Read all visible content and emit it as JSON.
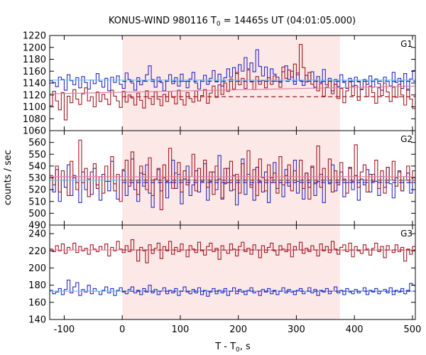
{
  "chart_data": {
    "type": "line",
    "title": {
      "prefix": "KONUS-WIND 980116 T",
      "prefix_sub": "0",
      "suffix": " = 14465s UT (04:01:05.000)"
    },
    "xlabel": {
      "prefix": "T - T",
      "sub": "0",
      "suffix": ", s"
    },
    "ylabel": "counts / sec",
    "xlim": [
      -125,
      505
    ],
    "xticks": [
      -100,
      0,
      100,
      200,
      300,
      400,
      500
    ],
    "xtick_labels": [
      "-100",
      "0",
      "100",
      "200",
      "300",
      "400",
      "500"
    ],
    "shaded_interval": {
      "x": [
        0,
        375
      ],
      "color": "#fde8e8"
    },
    "colors": {
      "red": "#a01820",
      "blue": "#2828c0",
      "fit_red": "#e080a8",
      "fit_blue": "#60c8e8"
    },
    "panels": [
      {
        "label": "G1",
        "ylim": [
          1060,
          1220
        ],
        "yticks": [
          1060,
          1080,
          1100,
          1120,
          1140,
          1160,
          1180,
          1200,
          1220
        ],
        "ytick_labels": [
          "1060",
          "1080",
          "1100",
          "1120",
          "1140",
          "1160",
          "1180",
          "1200",
          "1220"
        ],
        "bin_width": 5,
        "series": [
          {
            "color": "blue",
            "values": [
              1144,
              1141,
              1134,
              1150,
              1146,
              1128,
              1154,
              1144,
              1137,
              1149,
              1132,
              1151,
              1141,
              1130,
              1145,
              1139,
              1156,
              1143,
              1133,
              1148,
              1127,
              1150,
              1141,
              1152,
              1138,
              1131,
              1157,
              1146,
              1140,
              1128,
              1149,
              1137,
              1144,
              1154,
              1169,
              1146,
              1133,
              1150,
              1141,
              1127,
              1145,
              1154,
              1139,
              1149,
              1135,
              1155,
              1143,
              1132,
              1147,
              1158,
              1140,
              1130,
              1145,
              1153,
              1138,
              1148,
              1161,
              1142,
              1155,
              1135,
              1149,
              1164,
              1150,
              1166,
              1156,
              1171,
              1160,
              1183,
              1164,
              1174,
              1159,
              1196,
              1168,
              1152,
              1167,
              1145,
              1164,
              1155,
              1150,
              1141,
              1159,
              1169,
              1146,
              1160,
              1138,
              1157,
              1144,
              1136,
              1153,
              1145,
              1159,
              1133,
              1151,
              1141,
              1163,
              1137,
              1148,
              1127,
              1146,
              1134,
              1154,
              1141,
              1131,
              1148,
              1135,
              1150,
              1142,
              1129,
              1146,
              1138,
              1152,
              1133,
              1147,
              1139,
              1128,
              1150,
              1143,
              1135,
              1158,
              1141,
              1148,
              1131,
              1156,
              1128,
              1147,
              1161
            ]
          },
          {
            "color": "red",
            "values": [
              1102,
              1126,
              1110,
              1095,
              1124,
              1078,
              1118,
              1107,
              1129,
              1113,
              1104,
              1122,
              1132,
              1110,
              1117,
              1100,
              1125,
              1109,
              1121,
              1113,
              1104,
              1128,
              1118,
              1110,
              1099,
              1126,
              1108,
              1120,
              1115,
              1103,
              1123,
              1111,
              1098,
              1127,
              1114,
              1104,
              1125,
              1113,
              1102,
              1121,
              1109,
              1126,
              1116,
              1105,
              1128,
              1112,
              1103,
              1124,
              1114,
              1108,
              1127,
              1110,
              1119,
              1129,
              1106,
              1123,
              1135,
              1116,
              1137,
              1121,
              1140,
              1126,
              1147,
              1130,
              1158,
              1137,
              1148,
              1131,
              1162,
              1142,
              1129,
              1151,
              1138,
              1144,
              1132,
              1149,
              1138,
              1152,
              1143,
              1133,
              1167,
              1148,
              1162,
              1150,
              1172,
              1154,
              1205,
              1166,
              1142,
              1158,
              1138,
              1145,
              1127,
              1139,
              1118,
              1133,
              1145,
              1122,
              1138,
              1114,
              1131,
              1107,
              1127,
              1142,
              1119,
              1136,
              1111,
              1130,
              1143,
              1117,
              1135,
              1124,
              1106,
              1132,
              1119,
              1140,
              1125,
              1109,
              1133,
              1116,
              1138,
              1120,
              1103,
              1130,
              1113,
              1097
            ]
          }
        ],
        "fits": [
          {
            "color": "fit_blue",
            "style": "solid",
            "y": 1145
          },
          {
            "color": "fit_red",
            "style": "solid",
            "points": [
              [
                -125,
                1122
              ],
              [
                505,
                1135
              ]
            ]
          },
          {
            "color": "red",
            "style": "dashed",
            "y": 1117
          },
          {
            "color": "blue",
            "style": "dashed",
            "y": 1143
          }
        ]
      },
      {
        "label": "G2",
        "ylim": [
          490,
          570
        ],
        "yticks": [
          490,
          500,
          510,
          520,
          530,
          540,
          550,
          560
        ],
        "ytick_labels": [
          "490",
          "500",
          "510",
          "520",
          "530",
          "540",
          "550",
          "560"
        ],
        "bin_width": 5,
        "series": [
          {
            "color": "blue",
            "values": [
              530,
              518,
              537,
              510,
              528,
              522,
              541,
              515,
              532,
              526,
              509,
              535,
              520,
              529,
              516,
              538,
              524,
              511,
              533,
              527,
              519,
              544,
              525,
              512,
              531,
              536,
              515,
              528,
              546,
              520,
              510,
              534,
              523,
              541,
              517,
              505,
              528,
              537,
              519,
              530,
              513,
              526,
              545,
              521,
              533,
              508,
              529,
              540,
              515,
              524,
              536,
              518,
              531,
              542,
              511,
              527,
              535,
              520,
              549,
              512,
              525,
              538,
              519,
              532,
              507,
              528,
              546,
              516,
              533,
              524,
              511,
              539,
              527,
              518,
              535,
              509,
              530,
              543,
              521,
              526,
              514,
              537,
              523,
              531,
              545,
              517,
              528,
              512,
              534,
              522,
              539,
              515,
              527,
              533,
              509,
              531,
              525,
              541,
              519,
              528,
              535,
              514,
              526,
              538,
              520,
              532,
              511,
              529,
              524,
              537,
              518,
              533,
              527,
              515,
              531,
              522,
              539,
              525,
              513,
              530,
              536,
              519,
              528,
              534,
              517,
              530
            ]
          },
          {
            "color": "red",
            "values": [
              532,
              524,
              540,
              518,
              536,
              528,
              515,
              544,
              530,
              520,
              562,
              526,
              538,
              514,
              535,
              542,
              521,
              531,
              517,
              540,
              527,
              548,
              519,
              533,
              510,
              537,
              545,
              523,
              552,
              528,
              516,
              540,
              533,
              520,
              547,
              515,
              529,
              538,
              503,
              541,
              527,
              555,
              521,
              534,
              543,
              518,
              536,
              524,
              531,
              550,
              519,
              538,
              527,
              545,
              522,
              535,
              516,
              540,
              529,
              513,
              538,
              526,
              544,
              520,
              533,
              517,
              542,
              528,
              553,
              522,
              537,
              515,
              546,
              530,
              519,
              541,
              526,
              534,
              517,
              548,
              524,
              532,
              541,
              519,
              536,
              527,
              545,
              521,
              534,
              512,
              540,
              525,
              557,
              522,
              538,
              528,
              546,
              518,
              536,
              524,
              543,
              529,
              517,
              539,
              527,
              558,
              522,
              535,
              541,
              518,
              533,
              527,
              545,
              521,
              536,
              517,
              539,
              528,
              544,
              523,
              535,
              519,
              531,
              540,
              526,
              536
            ]
          }
        ],
        "fits": [
          {
            "color": "fit_red",
            "style": "solid",
            "y": 531
          },
          {
            "color": "fit_blue",
            "style": "solid",
            "y": 528
          },
          {
            "color": "blue",
            "style": "dashed",
            "y": 526
          },
          {
            "color": "red",
            "style": "dashed",
            "y": 528
          }
        ]
      },
      {
        "label": "G3",
        "ylim": [
          140,
          250
        ],
        "yticks": [
          140,
          160,
          180,
          200,
          220,
          240
        ],
        "ytick_labels": [
          "140",
          "160",
          "180",
          "200",
          "220",
          "240"
        ],
        "bin_width": 5,
        "series": [
          {
            "color": "red",
            "values": [
              222,
              219,
              226,
              220,
              228,
              217,
              224,
              221,
              229,
              218,
              225,
              220,
              223,
              216,
              227,
              222,
              219,
              225,
              221,
              228,
              214,
              224,
              220,
              231,
              222,
              218,
              226,
              219,
              233,
              221,
              208,
              224,
              220,
              206,
              227,
              217,
              223,
              229,
              211,
              225,
              220,
              231,
              216,
              224,
              219,
              228,
              221,
              213,
              226,
              222,
              218,
              230,
              220,
              215,
              225,
              229,
              219,
              223,
              210,
              226,
              221,
              217,
              228,
              222,
              214,
              225,
              230,
              219,
              223,
              216,
              227,
              221,
              212,
              226,
              218,
              224,
              229,
              220,
              215,
              226,
              222,
              219,
              228,
              213,
              225,
              221,
              230,
              217,
              223,
              219,
              226,
              221,
              214,
              228,
              220,
              225,
              218,
              231,
              222,
              216,
              224,
              227,
              219,
              229,
              213,
              225,
              220,
              217,
              227,
              222,
              215,
              223,
              229,
              219,
              225,
              212,
              226,
              221,
              218,
              227,
              219,
              224,
              208,
              222,
              216,
              225
            ]
          },
          {
            "color": "blue",
            "values": [
              174,
              170,
              172,
              176,
              169,
              175,
              186,
              171,
              178,
              183,
              168,
              175,
              172,
              180,
              170,
              176,
              173,
              169,
              174,
              178,
              171,
              176,
              168,
              174,
              177,
              172,
              170,
              175,
              178,
              171,
              174,
              169,
              176,
              172,
              180,
              171,
              175,
              169,
              173,
              177,
              170,
              174,
              171,
              176,
              168,
              173,
              178,
              172,
              170,
              175,
              171,
              177,
              169,
              174,
              167,
              172,
              176,
              170,
              174,
              171,
              176,
              168,
              173,
              177,
              170,
              175,
              172,
              169,
              174,
              177,
              171,
              173,
              168,
              175,
              172,
              176,
              170,
              174,
              169,
              173,
              177,
              171,
              175,
              172,
              169,
              174,
              176,
              170,
              173,
              177,
              171,
              175,
              168,
              174,
              172,
              176,
              170,
              173,
              178,
              171,
              174,
              169,
              176,
              172,
              170,
              175,
              171,
              173,
              177,
              169,
              174,
              172,
              176,
              170,
              173,
              175,
              171,
              177,
              169,
              174,
              172,
              176,
              170,
              174,
              182,
              180
            ]
          }
        ],
        "fits": [
          {
            "color": "fit_red",
            "style": "solid",
            "y": 221
          },
          {
            "color": "fit_blue",
            "style": "solid",
            "y": 173
          },
          {
            "color": "red",
            "style": "dashed",
            "y": 221
          },
          {
            "color": "blue",
            "style": "dashed",
            "y": 173
          }
        ]
      }
    ]
  }
}
